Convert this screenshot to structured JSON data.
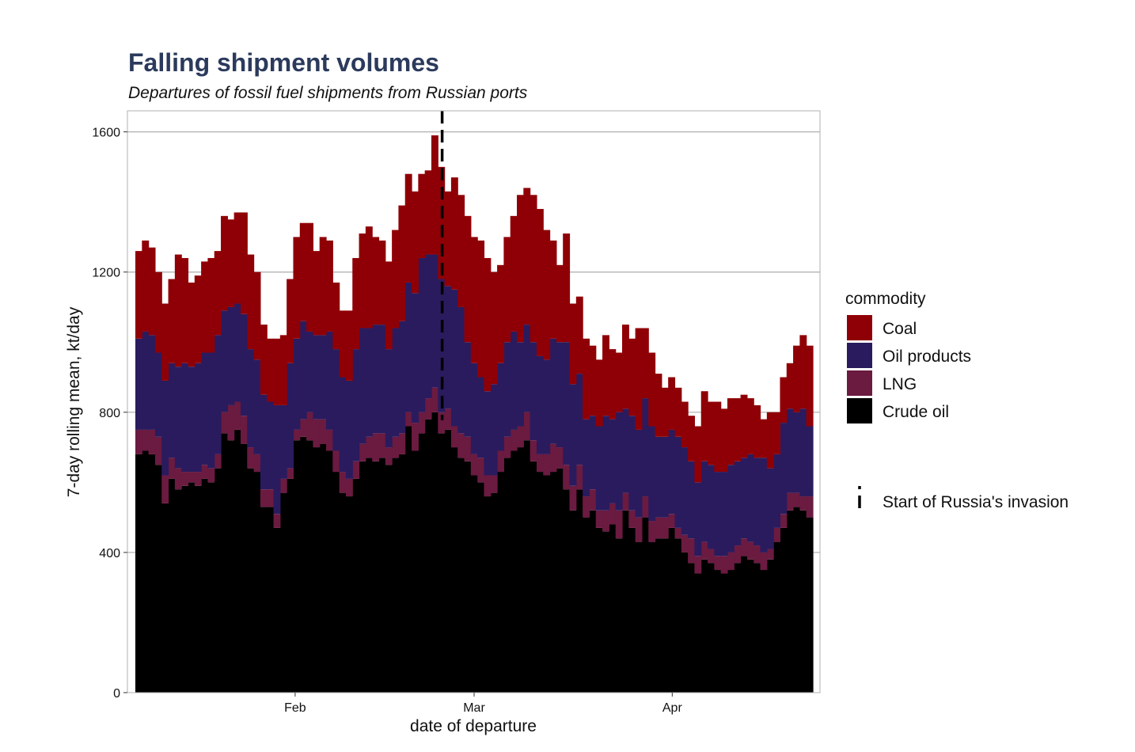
{
  "chart_data": {
    "type": "area",
    "stacked": true,
    "step": true,
    "title": "Falling shipment volumes",
    "subtitle": "Departures of fossil fuel shipments from Russian ports",
    "xlabel": "date of departure",
    "ylabel": "7-day rolling mean, kt/day",
    "x_start": "2022-01-07",
    "x_end": "2022-04-23",
    "x_ticks": [
      {
        "date": "2022-02-01",
        "label": "Feb"
      },
      {
        "date": "2022-03-01",
        "label": "Mar"
      },
      {
        "date": "2022-04-01",
        "label": "Apr"
      }
    ],
    "ylim": [
      0,
      1660
    ],
    "y_ticks": [
      0,
      400,
      800,
      1200,
      1600
    ],
    "grid": true,
    "legend_title": "commodity",
    "legend_position": "right",
    "invasion_marker": {
      "date": "2022-02-24",
      "label": "Start of Russia's invasion"
    },
    "series": [
      {
        "name": "Crude oil",
        "color": "#000000",
        "values": [
          680,
          690,
          680,
          650,
          540,
          610,
          580,
          590,
          600,
          590,
          610,
          600,
          640,
          740,
          720,
          750,
          710,
          640,
          630,
          530,
          530,
          470,
          570,
          610,
          720,
          730,
          720,
          700,
          710,
          690,
          630,
          570,
          560,
          610,
          660,
          670,
          660,
          670,
          650,
          670,
          680,
          760,
          690,
          740,
          780,
          800,
          740,
          750,
          700,
          670,
          660,
          620,
          600,
          560,
          570,
          630,
          670,
          690,
          700,
          720,
          660,
          630,
          620,
          630,
          640,
          580,
          520,
          580,
          500,
          520,
          470,
          460,
          480,
          440,
          520,
          470,
          430,
          500,
          430,
          440,
          440,
          470,
          440,
          400,
          370,
          340,
          380,
          370,
          350,
          340,
          350,
          370,
          390,
          380,
          370,
          350,
          380,
          430,
          470,
          520,
          530,
          520,
          500
        ]
      },
      {
        "name": "LNG",
        "color": "#6b1a40",
        "values": [
          70,
          60,
          70,
          80,
          80,
          60,
          60,
          40,
          30,
          40,
          40,
          40,
          40,
          60,
          100,
          80,
          80,
          60,
          50,
          50,
          50,
          40,
          40,
          30,
          30,
          50,
          80,
          80,
          70,
          60,
          60,
          60,
          50,
          50,
          50,
          60,
          80,
          70,
          50,
          60,
          60,
          40,
          80,
          60,
          60,
          70,
          60,
          60,
          60,
          70,
          70,
          60,
          70,
          60,
          50,
          60,
          60,
          60,
          60,
          80,
          60,
          50,
          60,
          80,
          60,
          70,
          70,
          70,
          60,
          60,
          50,
          60,
          60,
          80,
          50,
          50,
          70,
          60,
          60,
          60,
          60,
          40,
          30,
          50,
          70,
          50,
          50,
          40,
          40,
          50,
          50,
          50,
          50,
          50,
          50,
          50,
          30,
          40,
          40,
          50,
          40,
          40,
          60
        ]
      },
      {
        "name": "Oil products",
        "color": "#2a1b5e",
        "values": [
          260,
          280,
          270,
          240,
          270,
          270,
          290,
          310,
          300,
          310,
          320,
          330,
          340,
          290,
          280,
          280,
          290,
          280,
          270,
          270,
          250,
          310,
          210,
          300,
          260,
          280,
          230,
          240,
          240,
          280,
          290,
          270,
          280,
          320,
          330,
          310,
          310,
          310,
          280,
          310,
          320,
          370,
          370,
          440,
          410,
          380,
          380,
          350,
          390,
          360,
          270,
          260,
          230,
          240,
          260,
          250,
          270,
          280,
          240,
          250,
          280,
          280,
          270,
          300,
          300,
          350,
          290,
          260,
          220,
          210,
          240,
          270,
          240,
          280,
          240,
          270,
          250,
          280,
          270,
          230,
          230,
          240,
          260,
          250,
          220,
          210,
          230,
          240,
          240,
          240,
          250,
          240,
          230,
          250,
          250,
          270,
          230,
          210,
          260,
          240,
          230,
          250,
          200
        ]
      },
      {
        "name": "Coal",
        "color": "#8f0006",
        "values": [
          250,
          260,
          250,
          230,
          220,
          240,
          320,
          300,
          240,
          250,
          260,
          270,
          240,
          270,
          250,
          260,
          290,
          270,
          250,
          200,
          180,
          190,
          200,
          240,
          290,
          280,
          310,
          240,
          280,
          260,
          190,
          190,
          200,
          260,
          270,
          290,
          250,
          240,
          250,
          280,
          330,
          310,
          290,
          240,
          240,
          340,
          320,
          270,
          320,
          320,
          360,
          360,
          390,
          380,
          320,
          280,
          300,
          330,
          420,
          390,
          420,
          420,
          370,
          280,
          220,
          310,
          230,
          220,
          230,
          200,
          190,
          230,
          200,
          170,
          240,
          220,
          290,
          200,
          210,
          180,
          140,
          150,
          140,
          130,
          130,
          160,
          200,
          180,
          200,
          180,
          190,
          180,
          180,
          160,
          150,
          110,
          160,
          120,
          130,
          130,
          190,
          210,
          230
        ]
      }
    ]
  }
}
